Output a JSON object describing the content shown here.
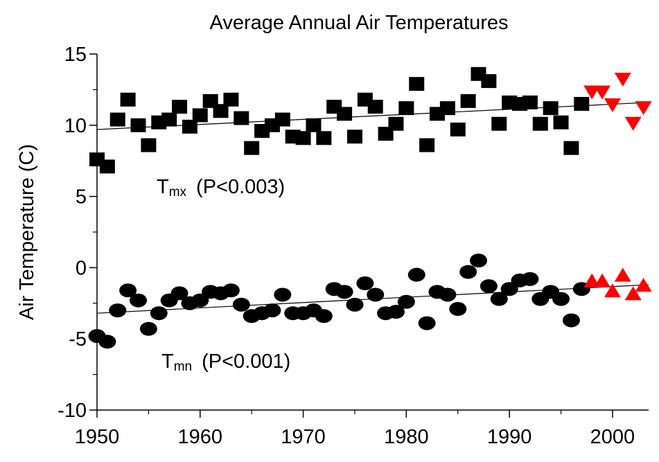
{
  "chart_data": {
    "type": "scatter",
    "title": "Average Annual Air Temperatures",
    "ylabel": "Air Temperature (C)",
    "xlim": [
      1950,
      2003.5
    ],
    "xticks": [
      1950,
      1960,
      1970,
      1980,
      1990,
      2000
    ],
    "xminor_ticks": [
      1955,
      1965,
      1975,
      1985,
      1995
    ],
    "ylim": [
      -10,
      15
    ],
    "yticks": [
      -10,
      -5,
      0,
      5,
      10,
      15
    ],
    "yminor_ticks": [
      -7.5,
      -2.5,
      2.5,
      7.5,
      12.5
    ],
    "series": [
      {
        "marker": "square",
        "color": "#000000",
        "x": [
          1950,
          1951,
          1952,
          1953,
          1954,
          1955,
          1956,
          1957,
          1958,
          1959,
          1960,
          1961,
          1962,
          1963,
          1964,
          1965,
          1966,
          1967,
          1968,
          1969,
          1970,
          1971,
          1972,
          1973,
          1974,
          1975,
          1976,
          1977,
          1978,
          1979,
          1980,
          1981,
          1982,
          1983,
          1984,
          1985,
          1986,
          1987,
          1988,
          1989,
          1990,
          1991,
          1992,
          1993,
          1994,
          1995,
          1996,
          1997
        ],
        "values": [
          7.6,
          7.1,
          10.4,
          11.8,
          10.0,
          8.6,
          10.2,
          10.4,
          11.3,
          9.9,
          10.7,
          11.7,
          11.0,
          11.8,
          10.5,
          8.4,
          9.6,
          10.0,
          10.4,
          9.2,
          9.1,
          10.0,
          9.1,
          11.3,
          10.8,
          9.2,
          11.8,
          11.3,
          9.4,
          10.1,
          11.2,
          12.9,
          8.6,
          10.8,
          11.2,
          9.7,
          11.7,
          13.6,
          13.1,
          10.1,
          11.6,
          11.5,
          11.6,
          10.1,
          11.2,
          10.2,
          8.4,
          11.5
        ]
      },
      {
        "marker": "triangle-down",
        "color": "#ff0000",
        "x": [
          1998,
          1999,
          2000,
          2001,
          2002,
          2003
        ],
        "values": [
          12.3,
          12.3,
          11.4,
          13.2,
          10.1,
          11.2
        ]
      },
      {
        "marker": "circle",
        "color": "#000000",
        "x": [
          1950,
          1951,
          1952,
          1953,
          1954,
          1955,
          1956,
          1957,
          1958,
          1959,
          1960,
          1961,
          1962,
          1963,
          1964,
          1965,
          1966,
          1967,
          1968,
          1969,
          1970,
          1971,
          1972,
          1973,
          1974,
          1975,
          1976,
          1977,
          1978,
          1979,
          1980,
          1981,
          1982,
          1983,
          1984,
          1985,
          1986,
          1987,
          1988,
          1989,
          1990,
          1991,
          1992,
          1993,
          1994,
          1995,
          1996,
          1997
        ],
        "values": [
          -4.8,
          -5.2,
          -3.0,
          -1.6,
          -2.3,
          -4.3,
          -3.2,
          -2.3,
          -1.8,
          -2.5,
          -2.3,
          -1.7,
          -1.8,
          -1.6,
          -2.6,
          -3.4,
          -3.2,
          -3.0,
          -1.9,
          -3.2,
          -3.2,
          -3.0,
          -3.4,
          -1.5,
          -1.7,
          -2.6,
          -1.1,
          -1.9,
          -3.2,
          -3.1,
          -2.4,
          -0.5,
          -3.9,
          -1.7,
          -1.9,
          -2.9,
          -0.3,
          0.5,
          -1.3,
          -2.2,
          -1.5,
          -0.9,
          -0.8,
          -2.2,
          -1.7,
          -2.2,
          -3.7,
          -1.5
        ]
      },
      {
        "marker": "triangle-up",
        "color": "#ff0000",
        "x": [
          1998,
          1999,
          2000,
          2001,
          2002,
          2003
        ],
        "values": [
          -0.9,
          -0.9,
          -1.6,
          -0.5,
          -1.8,
          -1.2
        ]
      }
    ],
    "trend_lines": [
      {
        "x": [
          1950,
          2003.5
        ],
        "values": [
          9.7,
          11.6
        ]
      },
      {
        "x": [
          1950,
          2003.5
        ],
        "values": [
          -3.2,
          -1.2
        ]
      }
    ],
    "annotations": [
      {
        "text": "T",
        "subscript": "mx",
        "note": "(P<0.003)"
      },
      {
        "text": "T",
        "subscript": "mn",
        "note": "(P<0.001)"
      }
    ]
  }
}
